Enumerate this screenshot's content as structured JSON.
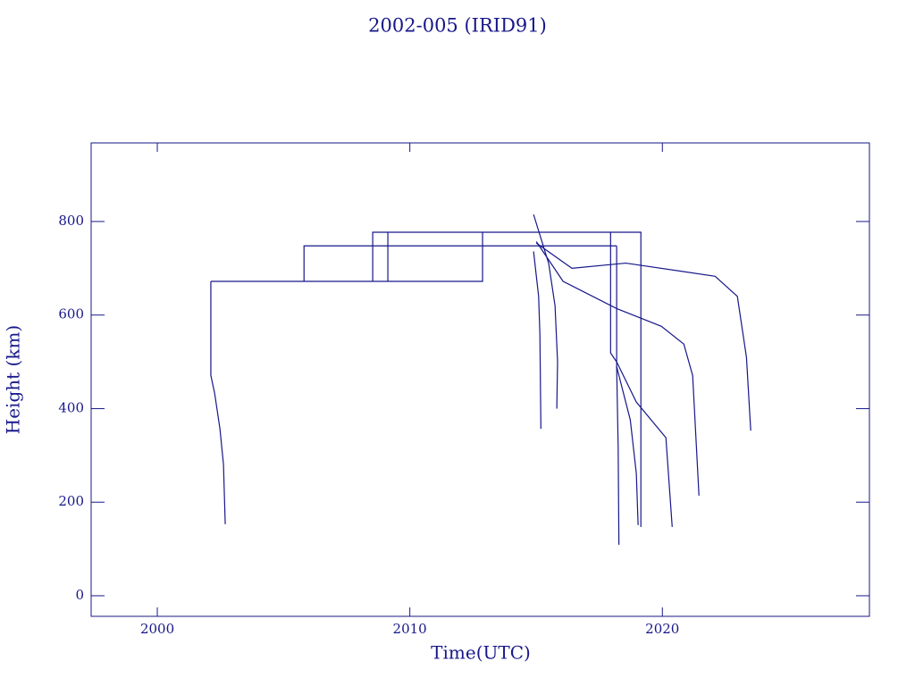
{
  "chart_data": {
    "type": "line",
    "title": "2002-005 (IRID91)",
    "x_label": "Time(UTC)",
    "y_label": "Height (km)",
    "xlim": [
      1997.38,
      2028.2
    ],
    "ylim": [
      -44,
      968
    ],
    "xticks": [
      2000,
      2010,
      2020
    ],
    "yticks": [
      0,
      200,
      400,
      600,
      800
    ],
    "color": "#17178a",
    "series": [
      {
        "x": [
          2002.12,
          2002.12,
          2002.27,
          2002.48,
          2002.62,
          2002.69
        ],
        "values": [
          672,
          471,
          433,
          357,
          281,
          153
        ]
      },
      {
        "x": [
          2002.12,
          2012.88,
          2012.88
        ],
        "values": [
          672,
          672,
          777
        ]
      },
      {
        "x": [
          2005.81,
          2005.81,
          2018.19
        ],
        "values": [
          672,
          748,
          748
        ]
      },
      {
        "x": [
          2008.53,
          2008.53,
          2019.15,
          2019.15
        ],
        "values": [
          672,
          777,
          777,
          147
        ]
      },
      {
        "x": [
          2009.13,
          2009.13
        ],
        "values": [
          672,
          777
        ]
      },
      {
        "x": [
          2014.9,
          2015.1,
          2015.15,
          2015.19
        ],
        "values": [
          736,
          640,
          560,
          357
        ]
      },
      {
        "x": [
          2014.9,
          2015.5,
          2015.75,
          2015.85,
          2015.82
        ],
        "values": [
          815,
          710,
          620,
          500,
          400
        ]
      },
      {
        "x": [
          2015.01,
          2016.42,
          2018.55,
          2022.09,
          2022.97,
          2023.33,
          2023.5
        ],
        "values": [
          754,
          700,
          711,
          683,
          640,
          510,
          353
        ]
      },
      {
        "x": [
          2015.01,
          2016.07,
          2018.19,
          2019.96,
          2020.85,
          2021.2,
          2021.45
        ],
        "values": [
          757,
          672,
          614,
          576,
          538,
          471,
          214
        ]
      },
      {
        "x": [
          2018.19,
          2018.97,
          2020.14,
          2020.39
        ],
        "values": [
          500,
          414,
          338,
          147
        ]
      },
      {
        "x": [
          2018.19,
          2018.73,
          2018.97,
          2019.04
        ],
        "values": [
          490,
          376,
          261,
          151
        ]
      },
      {
        "x": [
          2018.19,
          2018.19,
          2018.25,
          2018.28
        ],
        "values": [
          748,
          490,
          319,
          109
        ]
      },
      {
        "x": [
          2017.95,
          2017.95,
          2018.19
        ],
        "values": [
          777,
          519,
          500
        ]
      }
    ]
  }
}
